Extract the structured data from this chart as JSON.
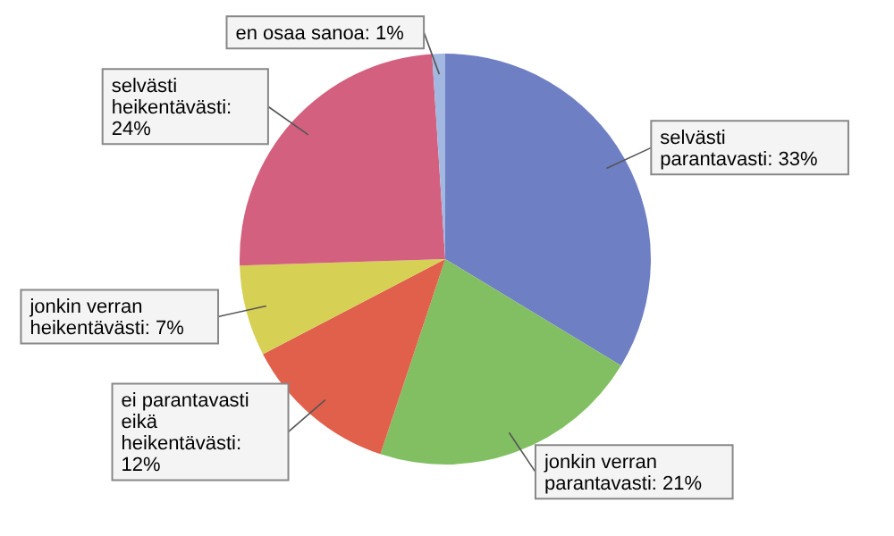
{
  "chart_data": {
    "type": "pie",
    "categories": [
      "selvästi parantavasti: 33%",
      "jonkin verran parantavasti: 21%",
      "ei parantavasti eikä heikentävästi: 12%",
      "jonkin verran heikentävästi: 7%",
      "selvästi heikentävästi: 24%",
      "en osaa sanoa: 1%"
    ],
    "values": [
      33,
      21,
      12,
      7,
      24,
      1
    ],
    "colors": [
      "#6f7fc4",
      "#82bf62",
      "#e0604c",
      "#d6d055",
      "#d2607e",
      "#a2b8e0"
    ]
  }
}
